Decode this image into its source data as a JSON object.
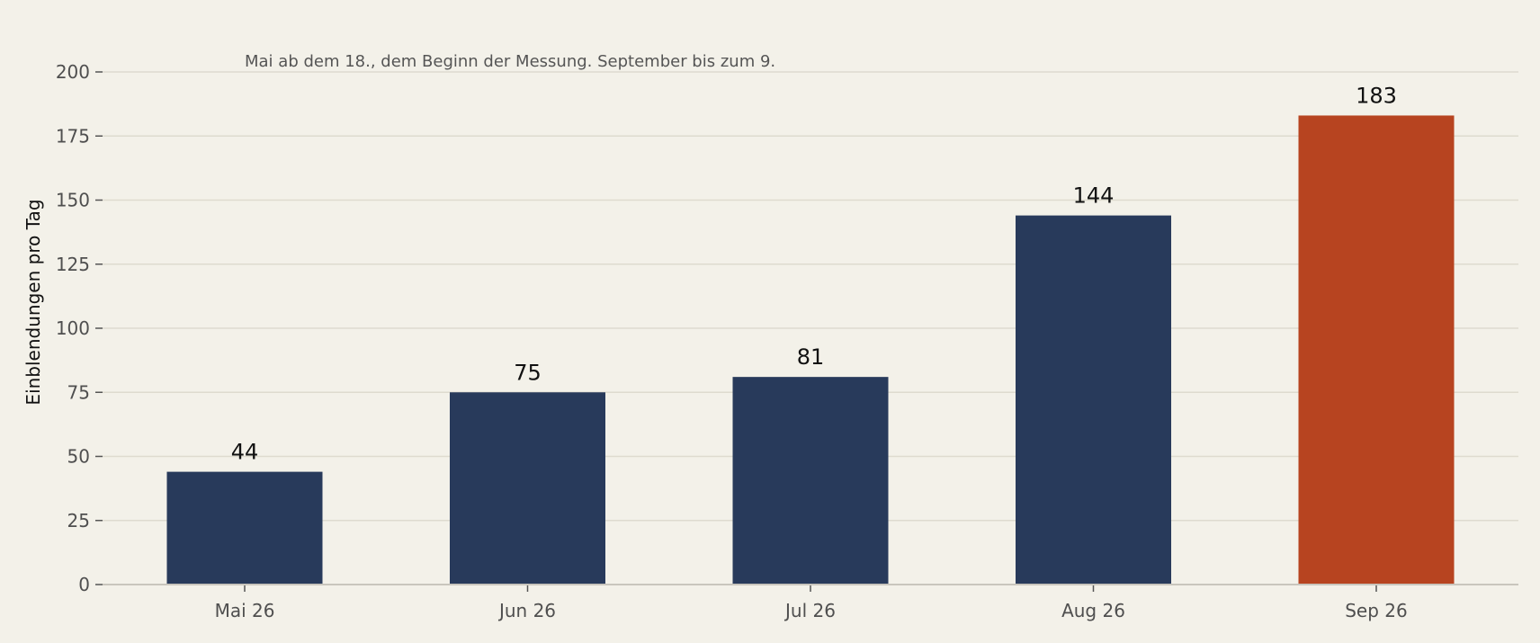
{
  "chart_data": {
    "type": "bar",
    "categories": [
      "Mai 26",
      "Jun 26",
      "Jul 26",
      "Aug 26",
      "Sep 26"
    ],
    "values": [
      44,
      75,
      81,
      144,
      183
    ],
    "ylabel": "Einblendungen pro Tag",
    "xlabel": "",
    "ylim": [
      0,
      200
    ],
    "yticks": [
      0,
      25,
      50,
      75,
      100,
      125,
      150,
      175,
      200
    ],
    "annotation": "Mai ab dem 18., dem Beginn der Messung. September bis zum 9.",
    "grid": true,
    "legend": "none",
    "colors": {
      "bar": "#283a5b",
      "highlight": "#b74420",
      "grid": "#dedbcf",
      "axis": "#c9c6bd",
      "background": "#f3f1e9"
    },
    "highlight_index": 4
  }
}
